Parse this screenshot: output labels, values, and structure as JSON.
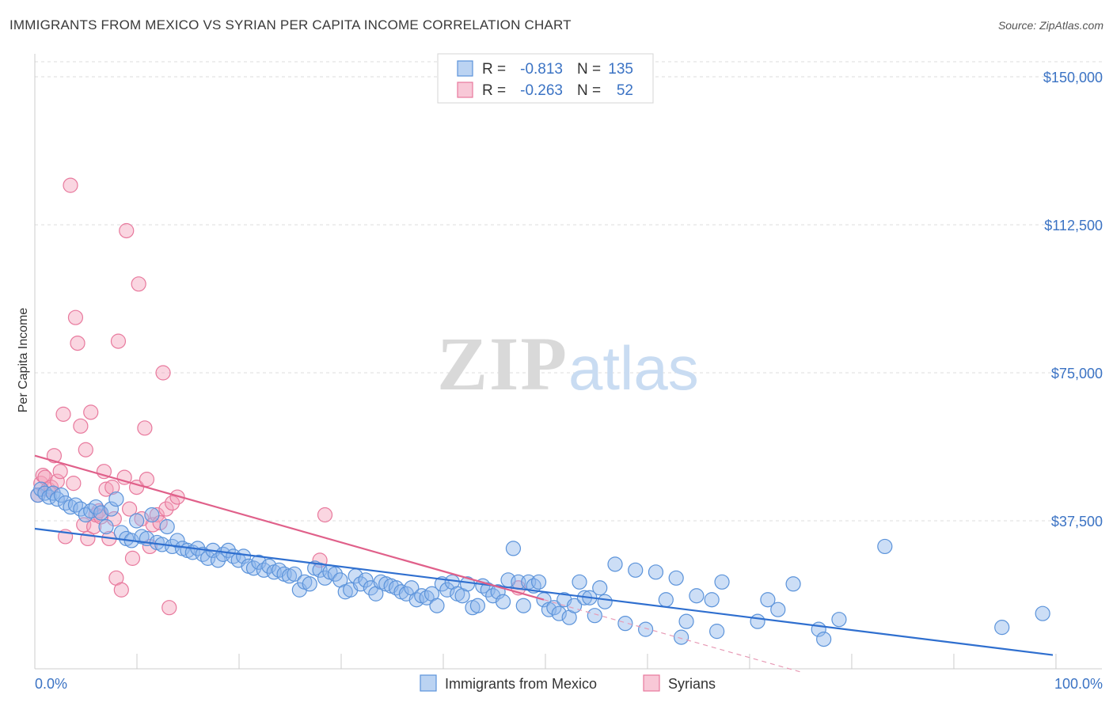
{
  "title": "IMMIGRANTS FROM MEXICO VS SYRIAN PER CAPITA INCOME CORRELATION CHART",
  "source": "Source: ZipAtlas.com",
  "chart_data": {
    "type": "scatter",
    "title": "IMMIGRANTS FROM MEXICO VS SYRIAN PER CAPITA INCOME CORRELATION CHART",
    "ylabel": "Per Capita Income",
    "xlabel": "",
    "xlim": [
      0,
      100
    ],
    "ylim": [
      0,
      157000
    ],
    "yticks": [
      37500,
      75000,
      112500,
      150000
    ],
    "ytick_labels": [
      "$37,500",
      "$75,000",
      "$112,500",
      "$150,000"
    ],
    "xtick_labels": [
      "0.0%",
      "100.0%"
    ],
    "watermark": {
      "zip": "ZIP",
      "atlas": "atlas"
    },
    "legend": {
      "r_label": "R =",
      "n_label": "N =",
      "entries": [
        {
          "name": "Immigrants from Mexico",
          "r": "-0.813",
          "n": "135",
          "color": "#8db6ea"
        },
        {
          "name": "Syrians",
          "r": "-0.263",
          "n": "52",
          "color": "#f3a3bd"
        }
      ]
    },
    "series": [
      {
        "name": "Immigrants from Mexico",
        "color": "#8db6ea",
        "edge": "#5b93da",
        "trend": {
          "x0": 0,
          "y0": 35500,
          "x1": 100,
          "y1": 3500,
          "color": "#2f6fcf"
        },
        "points": [
          [
            0.3,
            44000
          ],
          [
            0.6,
            45500
          ],
          [
            1.0,
            44500
          ],
          [
            1.4,
            43500
          ],
          [
            1.8,
            44500
          ],
          [
            2.2,
            43000
          ],
          [
            2.6,
            44000
          ],
          [
            3.0,
            42000
          ],
          [
            3.5,
            41000
          ],
          [
            4.0,
            41500
          ],
          [
            4.5,
            40500
          ],
          [
            5.0,
            39000
          ],
          [
            5.5,
            40000
          ],
          [
            6.0,
            41000
          ],
          [
            6.5,
            39500
          ],
          [
            7.0,
            36000
          ],
          [
            7.5,
            40500
          ],
          [
            8.0,
            43000
          ],
          [
            8.5,
            34500
          ],
          [
            9.0,
            33000
          ],
          [
            9.5,
            32500
          ],
          [
            10.0,
            37500
          ],
          [
            10.5,
            33500
          ],
          [
            11.0,
            33000
          ],
          [
            11.5,
            39000
          ],
          [
            12.0,
            32000
          ],
          [
            12.5,
            31500
          ],
          [
            13.0,
            36000
          ],
          [
            13.5,
            31000
          ],
          [
            14.0,
            32500
          ],
          [
            14.5,
            30500
          ],
          [
            15.0,
            30000
          ],
          [
            15.5,
            29500
          ],
          [
            16.0,
            30500
          ],
          [
            16.5,
            29000
          ],
          [
            17.0,
            28000
          ],
          [
            17.5,
            30000
          ],
          [
            18.0,
            27500
          ],
          [
            18.5,
            29000
          ],
          [
            19.0,
            30000
          ],
          [
            19.5,
            28500
          ],
          [
            20.0,
            27500
          ],
          [
            20.5,
            28500
          ],
          [
            21.0,
            26000
          ],
          [
            21.5,
            25500
          ],
          [
            22.0,
            27000
          ],
          [
            22.5,
            25000
          ],
          [
            23.0,
            26000
          ],
          [
            23.5,
            24500
          ],
          [
            24.0,
            25000
          ],
          [
            24.5,
            24000
          ],
          [
            25.0,
            23500
          ],
          [
            25.5,
            24000
          ],
          [
            26.0,
            20000
          ],
          [
            26.5,
            22000
          ],
          [
            27.0,
            21500
          ],
          [
            27.5,
            25500
          ],
          [
            28.0,
            25000
          ],
          [
            28.5,
            23000
          ],
          [
            29.0,
            24500
          ],
          [
            29.5,
            24000
          ],
          [
            30.0,
            22500
          ],
          [
            30.5,
            19500
          ],
          [
            31.0,
            20000
          ],
          [
            31.5,
            23500
          ],
          [
            32.0,
            21500
          ],
          [
            32.5,
            22500
          ],
          [
            33.0,
            20500
          ],
          [
            33.5,
            19000
          ],
          [
            34.0,
            22000
          ],
          [
            34.5,
            21500
          ],
          [
            35.0,
            21000
          ],
          [
            35.5,
            20500
          ],
          [
            36.0,
            19500
          ],
          [
            36.5,
            19000
          ],
          [
            37.0,
            20500
          ],
          [
            37.5,
            17500
          ],
          [
            38.0,
            18500
          ],
          [
            38.5,
            18000
          ],
          [
            39.0,
            19000
          ],
          [
            39.5,
            16000
          ],
          [
            40.0,
            21500
          ],
          [
            40.5,
            20000
          ],
          [
            41.0,
            22000
          ],
          [
            41.5,
            19000
          ],
          [
            42.0,
            18500
          ],
          [
            42.5,
            21500
          ],
          [
            43.0,
            15500
          ],
          [
            43.5,
            16000
          ],
          [
            44.0,
            21000
          ],
          [
            44.5,
            20000
          ],
          [
            45.0,
            18500
          ],
          [
            45.5,
            19500
          ],
          [
            46.0,
            17000
          ],
          [
            46.5,
            22500
          ],
          [
            47.0,
            30500
          ],
          [
            47.5,
            22000
          ],
          [
            48.0,
            16000
          ],
          [
            48.5,
            22000
          ],
          [
            49.0,
            21000
          ],
          [
            49.5,
            22000
          ],
          [
            50.0,
            17500
          ],
          [
            50.5,
            15000
          ],
          [
            51.0,
            15500
          ],
          [
            51.5,
            14000
          ],
          [
            52.0,
            17500
          ],
          [
            52.5,
            13000
          ],
          [
            53.0,
            16000
          ],
          [
            53.5,
            22000
          ],
          [
            54.0,
            18000
          ],
          [
            54.5,
            18000
          ],
          [
            55.0,
            13500
          ],
          [
            55.5,
            20500
          ],
          [
            56.0,
            17000
          ],
          [
            57.0,
            26500
          ],
          [
            58.0,
            11500
          ],
          [
            59.0,
            25000
          ],
          [
            60.0,
            10000
          ],
          [
            61.0,
            24500
          ],
          [
            62.0,
            17500
          ],
          [
            63.0,
            23000
          ],
          [
            63.5,
            8000
          ],
          [
            64.0,
            12000
          ],
          [
            65.0,
            18500
          ],
          [
            66.5,
            17500
          ],
          [
            67.0,
            9500
          ],
          [
            67.5,
            22000
          ],
          [
            71.0,
            12000
          ],
          [
            72.0,
            17500
          ],
          [
            73.0,
            15000
          ],
          [
            74.5,
            21500
          ],
          [
            77.0,
            10000
          ],
          [
            77.5,
            7500
          ],
          [
            79.0,
            12500
          ],
          [
            83.5,
            31000
          ],
          [
            95.0,
            10500
          ],
          [
            99.0,
            14000
          ]
        ]
      },
      {
        "name": "Syrians",
        "color": "#f3a3bd",
        "edge": "#e8799d",
        "trend": {
          "x0": 0,
          "y0": 54000,
          "x1": 50,
          "y1": 17500,
          "color": "#e0608a"
        },
        "trend_ext": {
          "x0": 50,
          "y0": 17500,
          "x1": 75.5,
          "y1": -1000
        },
        "points": [
          [
            0.3,
            44000
          ],
          [
            0.6,
            47000
          ],
          [
            0.8,
            49000
          ],
          [
            1.0,
            48500
          ],
          [
            1.3,
            45500
          ],
          [
            1.6,
            46000
          ],
          [
            1.9,
            54000
          ],
          [
            2.2,
            47500
          ],
          [
            2.5,
            50000
          ],
          [
            2.8,
            64500
          ],
          [
            3.0,
            33500
          ],
          [
            3.5,
            122500
          ],
          [
            3.8,
            47000
          ],
          [
            4.0,
            89000
          ],
          [
            4.2,
            82500
          ],
          [
            4.5,
            61500
          ],
          [
            4.8,
            36500
          ],
          [
            5.0,
            55500
          ],
          [
            5.2,
            33000
          ],
          [
            5.5,
            65000
          ],
          [
            5.8,
            36000
          ],
          [
            6.0,
            39000
          ],
          [
            6.3,
            40000
          ],
          [
            6.5,
            38500
          ],
          [
            6.8,
            50000
          ],
          [
            7.0,
            45500
          ],
          [
            7.3,
            33000
          ],
          [
            7.6,
            46000
          ],
          [
            7.8,
            38000
          ],
          [
            8.0,
            23000
          ],
          [
            8.2,
            83000
          ],
          [
            8.5,
            20000
          ],
          [
            8.8,
            48500
          ],
          [
            9.0,
            111000
          ],
          [
            9.3,
            40500
          ],
          [
            9.6,
            28000
          ],
          [
            10.0,
            46000
          ],
          [
            10.2,
            97500
          ],
          [
            10.5,
            38000
          ],
          [
            10.8,
            61000
          ],
          [
            11.0,
            48000
          ],
          [
            11.3,
            31000
          ],
          [
            11.6,
            36500
          ],
          [
            12.0,
            39000
          ],
          [
            12.3,
            37000
          ],
          [
            12.6,
            75000
          ],
          [
            12.9,
            40500
          ],
          [
            13.2,
            15500
          ],
          [
            13.5,
            42000
          ],
          [
            14.0,
            43500
          ],
          [
            28.0,
            27500
          ],
          [
            28.5,
            39000
          ],
          [
            47.5,
            20500
          ]
        ]
      }
    ]
  }
}
